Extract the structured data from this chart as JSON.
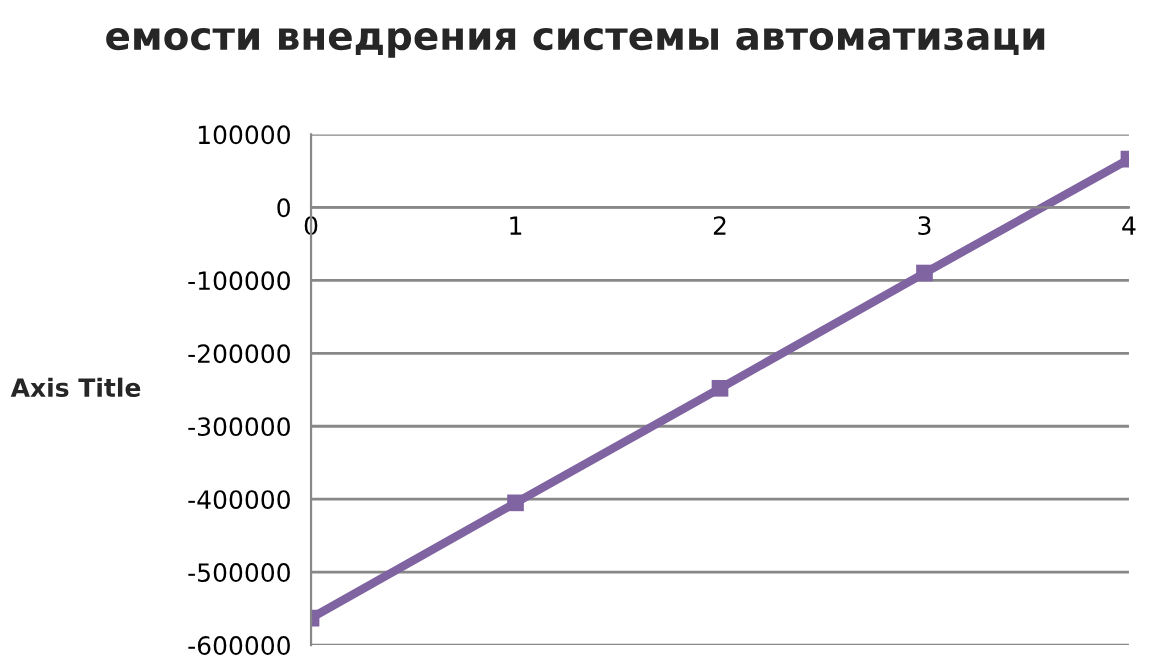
{
  "chart_data": {
    "type": "line",
    "title": "емости внедрения системы автоматизаци",
    "ylabel": "Axis Title",
    "x": [
      0,
      1,
      2,
      3,
      4
    ],
    "series": [
      {
        "color": "#8064a2",
        "values": [
          -563000,
          -405000,
          -248000,
          -90000,
          66000
        ]
      }
    ],
    "xlim": [
      0,
      4
    ],
    "xticks": [
      0,
      1,
      2,
      3,
      4
    ],
    "ylim": [
      -600000,
      100000
    ],
    "yticks": [
      -600000,
      -500000,
      -400000,
      -300000,
      -200000,
      -100000,
      0,
      100000
    ],
    "grid": "y",
    "marker": "square",
    "line_style": "solid"
  }
}
